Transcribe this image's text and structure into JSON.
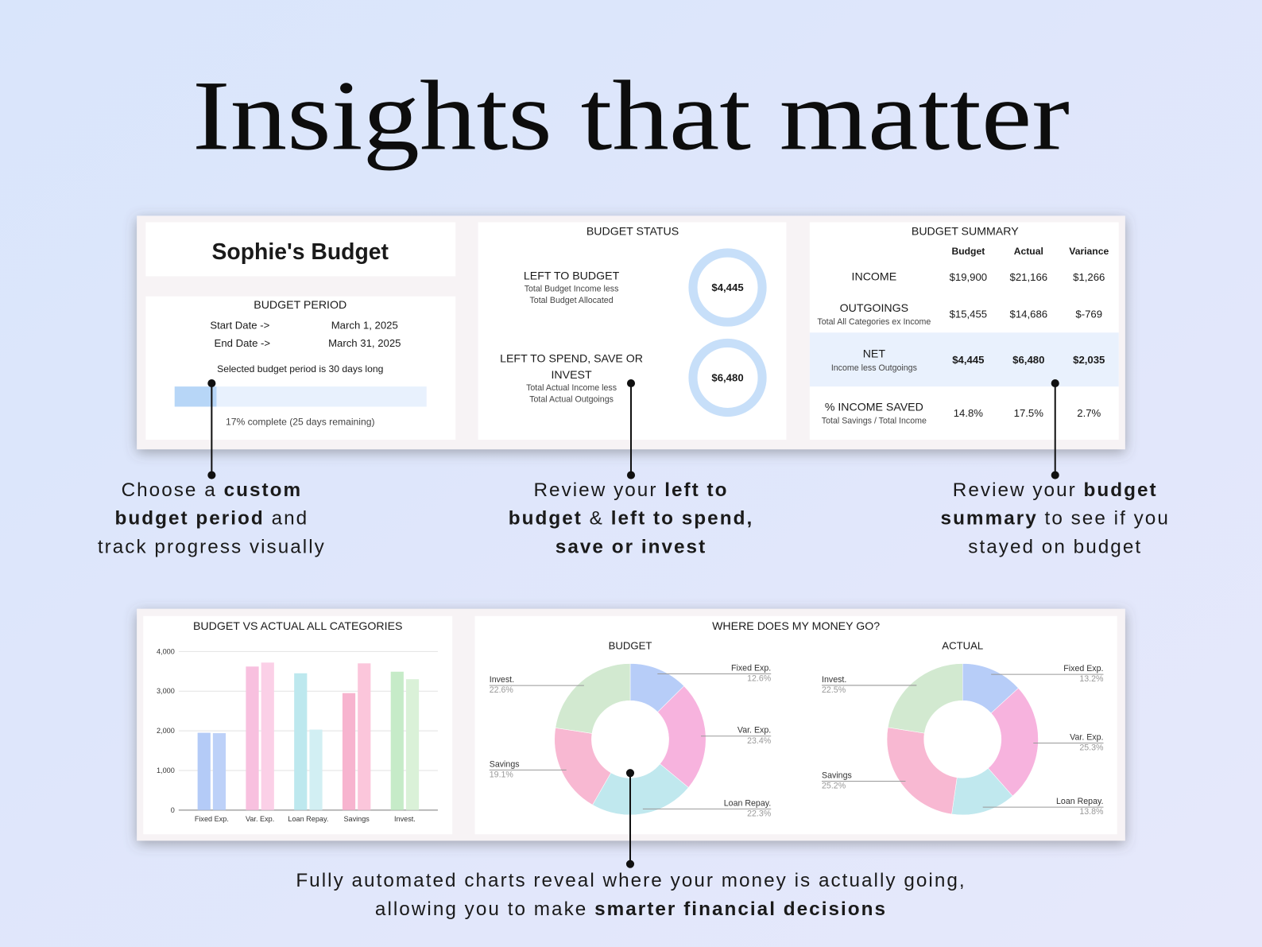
{
  "title": "Insights that matter",
  "budget_card": {
    "name": "Sophie's Budget",
    "period_title": "BUDGET PERIOD",
    "rows": [
      [
        "Start Date ->",
        "March 1, 2025"
      ],
      [
        "End Date ->",
        "March 31, 2025"
      ]
    ],
    "period_note": "Selected budget period is 30 days long",
    "progress_note": "17% complete (25 days remaining)"
  },
  "status_card": {
    "title": "BUDGET STATUS",
    "items": [
      {
        "lines": [
          "LEFT TO BUDGET"
        ],
        "notes": [
          "Total Budget Income less",
          "Total Budget Allocated"
        ],
        "amount": "$4,445"
      },
      {
        "lines": [
          "LEFT TO SPEND, SAVE OR",
          "INVEST"
        ],
        "notes": [
          "Total Actual Income less",
          "Total Actual Outgoings"
        ],
        "amount": "$6,480"
      }
    ]
  },
  "summary_card": {
    "title": "BUDGET SUMMARY",
    "columns": [
      "Budget",
      "Actual",
      "Variance"
    ],
    "rows": [
      {
        "label": "INCOME",
        "values": [
          "$19,900",
          "$21,166",
          "$1,266"
        ]
      },
      {
        "label": "OUTGOINGS",
        "note": "Total All Categories ex Income",
        "values": [
          "$15,455",
          "$14,686",
          "$-769"
        ]
      },
      {
        "label": "NET",
        "note": "Income less Outgoings",
        "values": [
          "$4,445",
          "$6,480",
          "$2,035"
        ],
        "highlight": true
      },
      {
        "label": "% INCOME SAVED",
        "note": "Total Savings / Total Income",
        "values": [
          "14.8%",
          "17.5%",
          "2.7%"
        ]
      }
    ]
  },
  "money_panel": {
    "title": "WHERE DOES MY MONEY GO?"
  },
  "captions": [
    {
      "lines": [
        [
          {
            "text": "Choose a "
          },
          {
            "text": "custom",
            "bold": true
          }
        ],
        [
          {
            "text": "budget period",
            "bold": true
          },
          {
            "text": " and"
          }
        ],
        [
          {
            "text": "track progress visually"
          }
        ]
      ]
    },
    {
      "lines": [
        [
          {
            "text": "Review your "
          },
          {
            "text": "left to",
            "bold": true
          }
        ],
        [
          {
            "text": "budget",
            "bold": true
          },
          {
            "text": " & "
          },
          {
            "text": "left to spend,",
            "bold": true
          }
        ],
        [
          {
            "text": "save or invest",
            "bold": true
          }
        ]
      ]
    },
    {
      "lines": [
        [
          {
            "text": "Review your "
          },
          {
            "text": "budget",
            "bold": true
          }
        ],
        [
          {
            "text": "summary",
            "bold": true
          },
          {
            "text": " to see if you"
          }
        ],
        [
          {
            "text": "stayed on budget"
          }
        ]
      ]
    },
    {
      "lines": [
        [
          {
            "text": "Fully automated charts reveal where your money is actually going,"
          }
        ],
        [
          {
            "text": "allowing you to make "
          },
          {
            "text": "smarter financial decisions",
            "bold": true
          }
        ]
      ]
    }
  ],
  "chart_data": [
    {
      "type": "bar",
      "title": "BUDGET VS ACTUAL ALL CATEGORIES",
      "categories": [
        "Fixed Exp.",
        "Var. Exp.",
        "Loan Repay.",
        "Savings",
        "Invest."
      ],
      "series": [
        {
          "values": [
            1950,
            3620,
            3450,
            2950,
            3490
          ],
          "colors": [
            "#b4cbf7",
            "#f8c0df",
            "#bde8ee",
            "#f7b4cf",
            "#c6ebc8"
          ]
        },
        {
          "values": [
            1940,
            3720,
            2030,
            3700,
            3300
          ],
          "colors": [
            "#bdd1f8",
            "#fbd0e7",
            "#d2eff3",
            "#fbc6db",
            "#daf1d8"
          ]
        }
      ],
      "ylim": [
        0,
        4000
      ],
      "yticks": [
        0,
        {
          "value": 1000,
          "label": "1,000"
        },
        {
          "value": 2000,
          "label": "2,000"
        },
        {
          "value": 3000,
          "label": "3,000"
        },
        {
          "value": 4000,
          "label": "4,000"
        }
      ],
      "grid": true
    },
    {
      "type": "pie",
      "title": "BUDGET",
      "categories": [
        "Fixed Exp.",
        "Var. Exp.",
        "Loan Repay.",
        "Savings",
        "Invest."
      ],
      "values": [
        12.6,
        23.4,
        22.3,
        19.1,
        22.6
      ],
      "value_labels": [
        "12.6%",
        "23.4%",
        "22.3%",
        "19.1%",
        "22.6%"
      ],
      "colors": [
        "#b7cdf8",
        "#f7b3de",
        "#c0e8ee",
        "#f8b8d2",
        "#d2e9d0"
      ]
    },
    {
      "type": "pie",
      "title": "ACTUAL",
      "categories": [
        "Fixed Exp.",
        "Var. Exp.",
        "Loan Repay.",
        "Savings",
        "Invest."
      ],
      "values": [
        13.2,
        25.3,
        13.8,
        25.2,
        22.5
      ],
      "value_labels": [
        "13.2%",
        "25.3%",
        "13.8%",
        "25.2%",
        "22.5%"
      ],
      "colors": [
        "#b7cdf8",
        "#f7b3de",
        "#c0e8ee",
        "#f8b8d2",
        "#d2e9d0"
      ]
    }
  ]
}
